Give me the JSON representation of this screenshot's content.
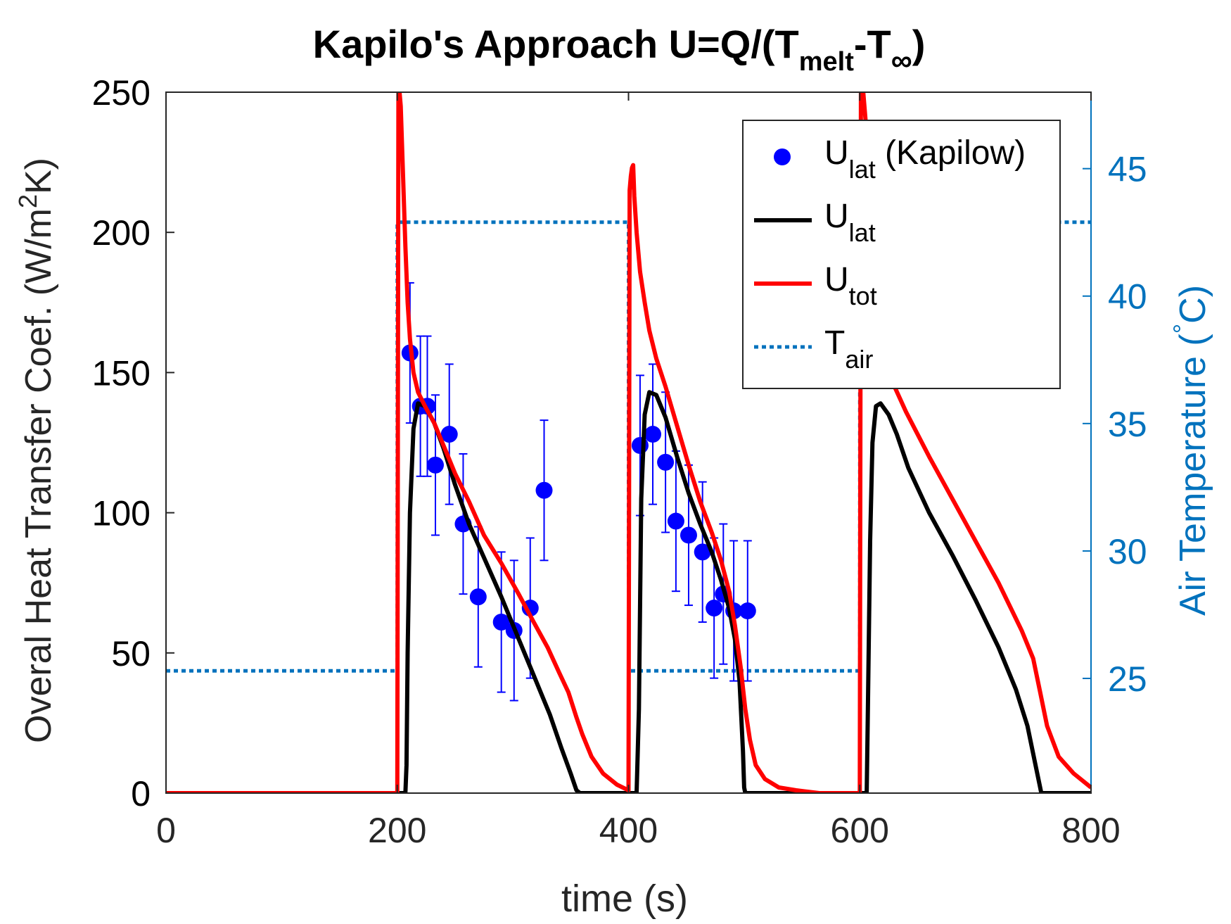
{
  "chart_data": {
    "type": "line",
    "title": {
      "prefix": "Kapilo's Approach U=Q/(T",
      "sub1": "melt",
      "mid": "-T",
      "sub2": "∞",
      "suffix": ")"
    },
    "xlabel": "time (s)",
    "ylabel_left": {
      "main": "Overal Heat Transfer Coef. (W/m",
      "sup": "2",
      "tail": "K)"
    },
    "ylabel_right": {
      "main": "Air Temperature (",
      "sup": "°",
      "tail": "C)"
    },
    "xlim": [
      0,
      800
    ],
    "ylim_left": [
      0,
      250
    ],
    "ylim_right": [
      20.5,
      48
    ],
    "x_ticks": [
      "0",
      "200",
      "400",
      "600",
      "800"
    ],
    "y_ticks_left": [
      "0",
      "50",
      "100",
      "150",
      "200",
      "250"
    ],
    "y_ticks_right": [
      "25",
      "30",
      "35",
      "40",
      "45"
    ],
    "colors": {
      "points": "#0000ff",
      "u_lat": "#000000",
      "u_tot": "#ff0000",
      "t_air": "#0072bd"
    },
    "legend": {
      "placement": "top-right",
      "entries": [
        {
          "key": "points",
          "main": "U",
          "sub": "lat",
          "tail": " (Kapilow)"
        },
        {
          "key": "u_lat",
          "main": "U",
          "sub": "lat",
          "tail": ""
        },
        {
          "key": "u_tot",
          "main": "U",
          "sub": "tot",
          "tail": ""
        },
        {
          "key": "t_air",
          "main": "T",
          "sub": "air",
          "tail": ""
        }
      ]
    },
    "series": [
      {
        "key": "points",
        "axis": "left",
        "style": "markers",
        "x": [
          211,
          220,
          226,
          233,
          245,
          257,
          270,
          290,
          301,
          315,
          327,
          410,
          421,
          432,
          441,
          452,
          464,
          474,
          482,
          491,
          503
        ],
        "y": [
          157,
          138,
          138,
          117,
          128,
          96,
          70,
          61,
          58,
          66,
          108,
          124,
          128,
          118,
          97,
          92,
          86,
          66,
          71,
          65,
          65
        ],
        "err": [
          25,
          25,
          25,
          25,
          25,
          25,
          25,
          25,
          25,
          25,
          25,
          25,
          25,
          25,
          25,
          25,
          25,
          25,
          25,
          25,
          25
        ]
      },
      {
        "key": "u_lat",
        "axis": "left",
        "style": "line",
        "x": [
          0,
          200,
          201,
          203,
          205,
          207,
          208,
          209,
          211,
          214,
          218,
          224,
          232,
          240,
          250,
          262,
          275,
          290,
          305,
          320,
          332,
          342,
          350,
          355,
          358,
          359,
          360,
          400,
          401,
          403,
          405,
          407,
          409,
          411,
          414,
          418,
          424,
          432,
          442,
          452,
          462,
          472,
          480,
          487,
          492,
          496,
          499,
          500,
          501,
          600,
          601,
          603,
          604,
          606,
          607,
          609,
          611,
          614,
          618,
          625,
          632,
          642,
          660,
          680,
          700,
          720,
          735,
          745,
          752,
          756,
          757,
          800
        ],
        "y": [
          0,
          0,
          0,
          0,
          0,
          0,
          10,
          50,
          100,
          130,
          139,
          138,
          132,
          123,
          110,
          96,
          84,
          70,
          55,
          40,
          28,
          16,
          7,
          1,
          0,
          0,
          0,
          0,
          0,
          0,
          0,
          0,
          30,
          105,
          135,
          143,
          142,
          134,
          120,
          107,
          96,
          86,
          76,
          66,
          55,
          40,
          15,
          2,
          0,
          0,
          0,
          0,
          0,
          0,
          30,
          90,
          125,
          138,
          139,
          135,
          128,
          116,
          100,
          85,
          69,
          52,
          37,
          24,
          10,
          2,
          0,
          0
        ]
      },
      {
        "key": "u_tot",
        "axis": "left",
        "style": "line",
        "x": [
          0,
          200,
          201,
          202,
          203,
          205,
          207,
          209,
          211,
          214,
          218,
          224,
          232,
          240,
          250,
          262,
          275,
          290,
          305,
          318,
          330,
          340,
          348,
          355,
          360,
          368,
          378,
          390,
          400,
          401,
          402,
          403,
          404,
          405,
          407,
          410,
          414,
          418,
          424,
          432,
          442,
          452,
          462,
          472,
          480,
          487,
          492,
          497,
          501,
          505,
          510,
          518,
          530,
          545,
          565,
          585,
          600,
          601,
          602,
          603,
          605,
          608,
          612,
          617,
          622,
          630,
          640,
          660,
          680,
          700,
          720,
          740,
          750,
          756,
          762,
          772,
          785,
          800
        ],
        "y": [
          0,
          0,
          250,
          250,
          245,
          220,
          195,
          175,
          162,
          150,
          143,
          138,
          132,
          124,
          114,
          104,
          92,
          82,
          71,
          61,
          52,
          43,
          36,
          27,
          21,
          13,
          7,
          3,
          1,
          215,
          220,
          223,
          224,
          213,
          200,
          186,
          175,
          165,
          155,
          145,
          131,
          117,
          104,
          93,
          83,
          72,
          60,
          45,
          30,
          19,
          10,
          5,
          2,
          1,
          0,
          0,
          0,
          250,
          250,
          250,
          240,
          220,
          195,
          172,
          155,
          145,
          136,
          120,
          105,
          90,
          75,
          58,
          48,
          36,
          24,
          13,
          7,
          2
        ]
      },
      {
        "key": "t_air",
        "axis": "right",
        "style": "dotted",
        "x": [
          0,
          200,
          200,
          400,
          400,
          600,
          600,
          800
        ],
        "y": [
          25.3,
          25.3,
          42.9,
          42.9,
          25.3,
          25.3,
          42.9,
          42.9
        ]
      }
    ]
  }
}
